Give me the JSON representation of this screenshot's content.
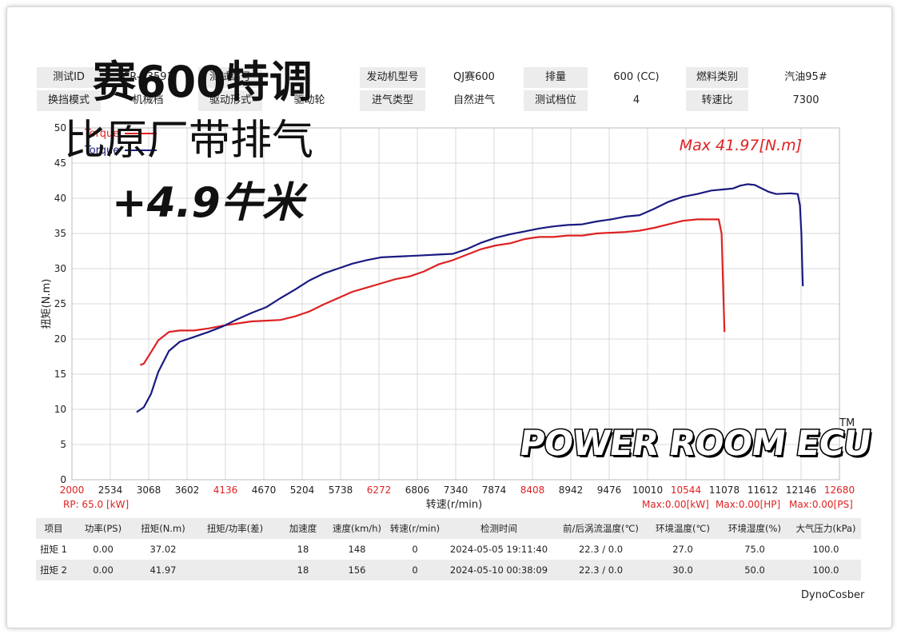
{
  "colors": {
    "series1": "#dd2222",
    "series2": "#1a1a80",
    "max_label": "#dd2222",
    "header_bg": "#ececec",
    "grid": "#d8d8d8"
  },
  "header_rows": [
    [
      {
        "label": "测试ID",
        "value": "CR-E3591"
      },
      {
        "label": "测试编号",
        "value": ""
      },
      {
        "label": "发动机型号",
        "value": "QJ赛600"
      },
      {
        "label": "排量",
        "value": "600 (CC)"
      },
      {
        "label": "燃料类别",
        "value": "汽油95#"
      }
    ],
    [
      {
        "label": "换挡模式",
        "value": "机械档"
      },
      {
        "label": "驱动形式",
        "value": "驱动轮"
      },
      {
        "label": "进气类型",
        "value": "自然进气"
      },
      {
        "label": "测试档位",
        "value": "4"
      },
      {
        "label": "转速比",
        "value": "7300"
      }
    ]
  ],
  "overlay": {
    "line1": "赛600特调",
    "line2": "比原厂带排气",
    "line3": "+4.9牛米"
  },
  "chart_data": {
    "type": "line",
    "ylabel": "扭矩(N.m)",
    "xlabel": "转速(r/min)",
    "xlim": [
      2000,
      12680
    ],
    "ylim": [
      0,
      50
    ],
    "x_ticks": [
      2000,
      2534,
      3068,
      3602,
      4136,
      4670,
      5204,
      5738,
      6272,
      6806,
      7340,
      7874,
      8408,
      8942,
      9476,
      10010,
      10544,
      11078,
      11612,
      12146,
      12680
    ],
    "x_ticks_red": [
      2000,
      4136,
      6272,
      8408,
      10544,
      12680
    ],
    "y_ticks": [
      0,
      5,
      10,
      15,
      20,
      25,
      30,
      35,
      40,
      45,
      50
    ],
    "grid": true,
    "legend_position": "top-left",
    "annotation": "Max 41.97[N.m]",
    "series": [
      {
        "name": "Torque",
        "color": "#dd2222",
        "x": [
          2950,
          3000,
          3080,
          3200,
          3350,
          3500,
          3700,
          3900,
          4100,
          4300,
          4500,
          4700,
          4900,
          5100,
          5300,
          5500,
          5700,
          5900,
          6100,
          6300,
          6500,
          6700,
          6900,
          7100,
          7300,
          7500,
          7700,
          7900,
          8100,
          8300,
          8500,
          8700,
          8900,
          9100,
          9300,
          9500,
          9700,
          9900,
          10100,
          10300,
          10500,
          10700,
          10900,
          11000,
          11040,
          11060,
          11080
        ],
        "y": [
          16.3,
          16.5,
          17.8,
          19.8,
          21.0,
          21.2,
          21.2,
          21.5,
          21.9,
          22.2,
          22.5,
          22.6,
          22.7,
          23.2,
          23.9,
          24.9,
          25.8,
          26.7,
          27.3,
          27.9,
          28.5,
          28.9,
          29.6,
          30.6,
          31.2,
          32.0,
          32.8,
          33.3,
          33.6,
          34.2,
          34.5,
          34.5,
          34.7,
          34.7,
          35.0,
          35.1,
          35.2,
          35.4,
          35.8,
          36.3,
          36.8,
          37.0,
          37.0,
          37.0,
          35.0,
          28.0,
          21.0
        ]
      },
      {
        "name": "Torque",
        "color": "#1a1a80",
        "x": [
          2900,
          3000,
          3100,
          3200,
          3350,
          3500,
          3700,
          3900,
          4100,
          4300,
          4500,
          4700,
          4900,
          5100,
          5300,
          5500,
          5700,
          5900,
          6100,
          6300,
          6500,
          6700,
          6900,
          7100,
          7300,
          7500,
          7700,
          7900,
          8100,
          8300,
          8500,
          8700,
          8900,
          9100,
          9300,
          9500,
          9700,
          9900,
          10100,
          10300,
          10500,
          10700,
          10900,
          11100,
          11200,
          11300,
          11400,
          11500,
          11600,
          11700,
          11800,
          12000,
          12100,
          12130,
          12150,
          12160,
          12170
        ],
        "y": [
          9.6,
          10.3,
          12.2,
          15.3,
          18.3,
          19.6,
          20.3,
          21.0,
          21.8,
          22.8,
          23.7,
          24.5,
          25.8,
          27.0,
          28.3,
          29.3,
          30.0,
          30.7,
          31.2,
          31.6,
          31.7,
          31.8,
          31.9,
          32.0,
          32.1,
          32.8,
          33.7,
          34.4,
          34.9,
          35.3,
          35.7,
          36.0,
          36.2,
          36.3,
          36.7,
          37.0,
          37.4,
          37.6,
          38.5,
          39.5,
          40.2,
          40.6,
          41.1,
          41.3,
          41.4,
          41.8,
          42.0,
          41.9,
          41.4,
          40.9,
          40.6,
          40.7,
          40.6,
          39.0,
          35.0,
          31.0,
          27.5
        ]
      }
    ]
  },
  "bottom": {
    "rp": "RP:  65.0 [kW]",
    "max_kw": "Max:0.00[kW]",
    "max_hp": "Max:0.00[HP]",
    "max_ps": "Max:0.00[PS]"
  },
  "results_table": {
    "headers": [
      "项目",
      "功率(PS)",
      "扭矩(N.m)",
      "扭矩/功率(差)",
      "加速度",
      "速度(km/h)",
      "转速(r/min)",
      "检测时间",
      "前/后涡流温度(℃)",
      "环境温度(℃)",
      "环境湿度(%)",
      "大气压力(kPa)"
    ],
    "rows": [
      [
        "扭矩 1",
        "0.00",
        "37.02",
        "",
        "18",
        "148",
        "0",
        "2024-05-05 19:11:40",
        "22.3 / 0.0",
        "27.0",
        "75.0",
        "100.0"
      ],
      [
        "扭矩 2",
        "0.00",
        "41.97",
        "",
        "18",
        "156",
        "0",
        "2024-05-10 00:38:09",
        "22.3 / 0.0",
        "30.0",
        "50.0",
        "100.0"
      ]
    ]
  },
  "logo": {
    "text": "POWER ROOM ECU",
    "tm": "TM"
  },
  "footer": {
    "brand": "DynoCosber"
  }
}
